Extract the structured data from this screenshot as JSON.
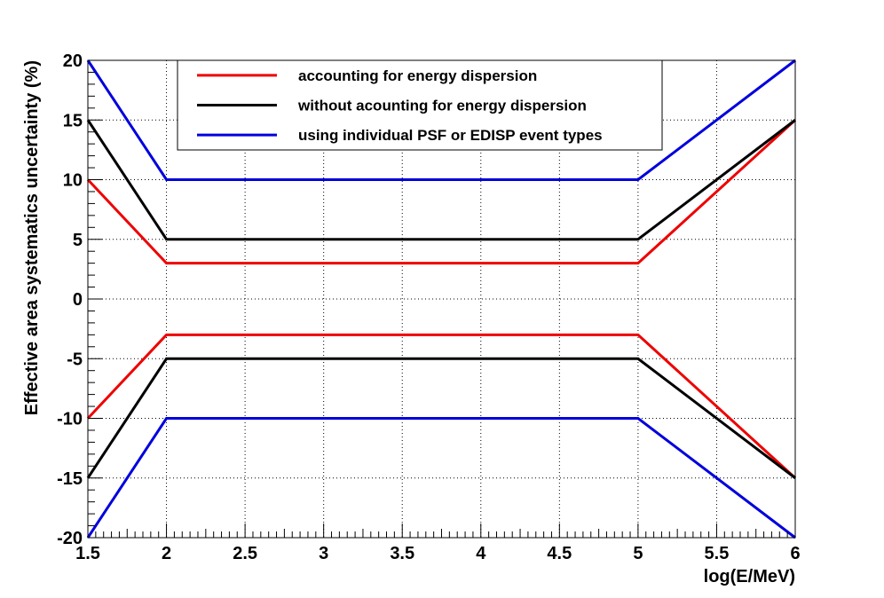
{
  "chart_data": {
    "type": "line",
    "title": "",
    "xlabel": "log(E/MeV)",
    "ylabel": "Effective area systematics uncertainty (%)",
    "xlim": [
      1.5,
      6
    ],
    "ylim": [
      -20,
      20
    ],
    "x_ticks": [
      1.5,
      2,
      2.5,
      3,
      3.5,
      4,
      4.5,
      5,
      5.5,
      6
    ],
    "x_tick_labels": [
      "1.5",
      "2",
      "2.5",
      "3",
      "3.5",
      "4",
      "4.5",
      "5",
      "5.5",
      "6"
    ],
    "y_ticks": [
      -20,
      -15,
      -10,
      -5,
      0,
      5,
      10,
      15,
      20
    ],
    "y_tick_labels": [
      "-20",
      "-15",
      "-10",
      "-5",
      "0",
      "5",
      "10",
      "15",
      "20"
    ],
    "grid": true,
    "legend_position": "top-center",
    "x": [
      1.5,
      2,
      5,
      6
    ],
    "series": [
      {
        "name": "accounting for energy dispersion",
        "color": "#ee0000",
        "upper": [
          10,
          3,
          3,
          15
        ],
        "lower": [
          -10,
          -3,
          -3,
          -15
        ]
      },
      {
        "name": "without acounting for energy dispersion",
        "color": "#000000",
        "upper": [
          15,
          5,
          5,
          15
        ],
        "lower": [
          -15,
          -5,
          -5,
          -15
        ]
      },
      {
        "name": "using individual PSF or EDISP event types",
        "color": "#0000dd",
        "upper": [
          20,
          10,
          10,
          20
        ],
        "lower": [
          -20,
          -10,
          -10,
          -20
        ]
      }
    ]
  }
}
